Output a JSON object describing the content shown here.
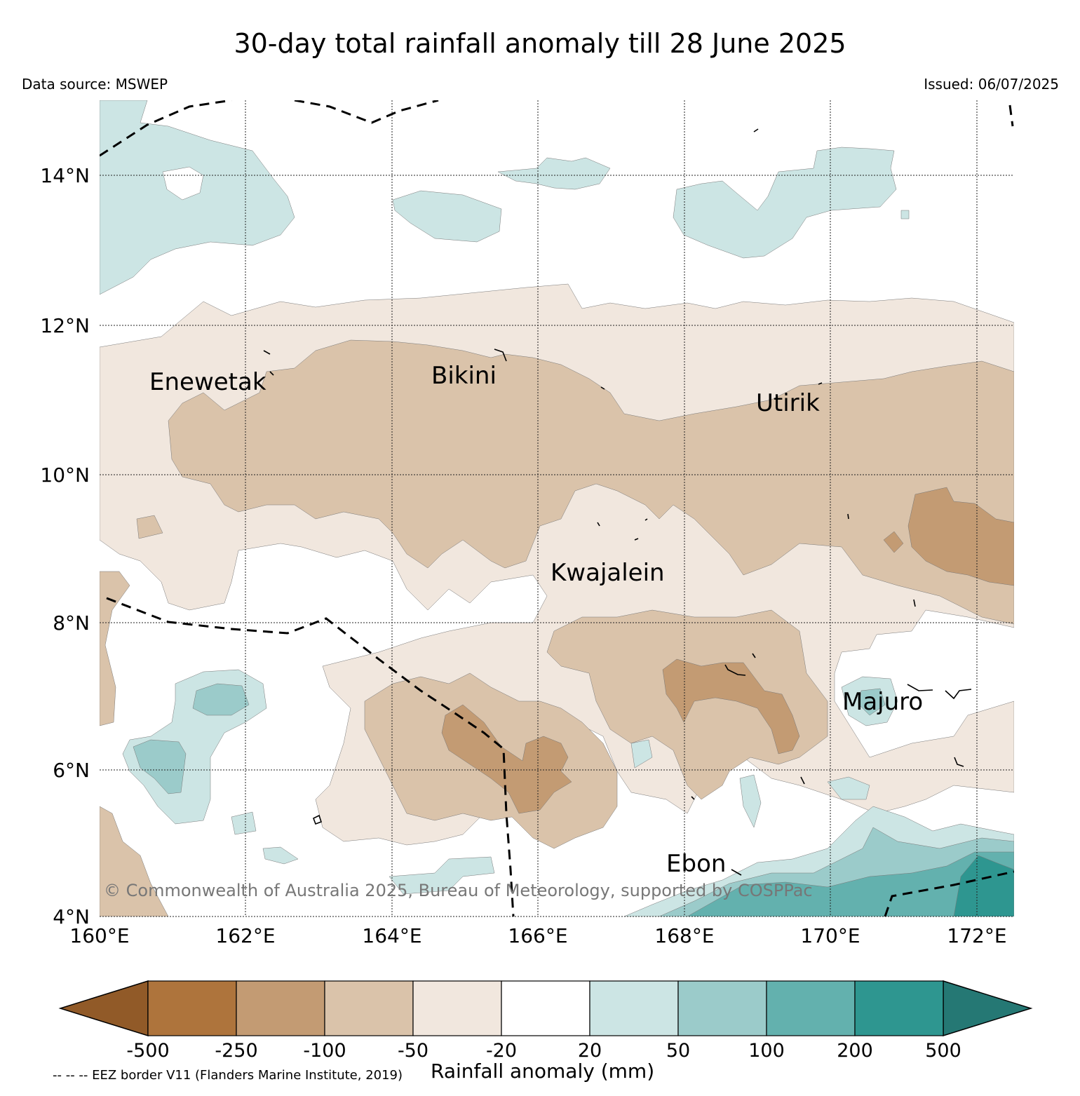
{
  "title": "30-day total rainfall anomaly till 28 June 2025",
  "data_source": "Data source: MSWEP",
  "issued": "Issued: 06/07/2025",
  "copyright": "© Commonwealth of Australia 2025, Bureau of Meteorology, supported by COSPPac",
  "eez_note": "-- -- -- EEZ border V11 (Flanders Marine Institute, 2019)",
  "colorbar": {
    "title": "Rainfall anomaly (mm)",
    "bounds": [
      "-500",
      "-250",
      "-100",
      "-50",
      "-20",
      "20",
      "50",
      "100",
      "200",
      "500"
    ],
    "colors": [
      "#ae743c",
      "#c39b73",
      "#dac3aa",
      "#f1e7de",
      "#ffffff",
      "#cce5e4",
      "#9bcbca",
      "#63b1ae",
      "#2e9690"
    ],
    "extend_low_color": "#915a28",
    "extend_high_color": "#257874"
  },
  "map": {
    "lat_labels": [
      "14°N",
      "12°N",
      "10°N",
      "8°N",
      "6°N",
      "4°N"
    ],
    "lon_labels": [
      "160°E",
      "162°E",
      "164°E",
      "166°E",
      "168°E",
      "170°E",
      "172°E"
    ],
    "lon_range": [
      160,
      172.5
    ],
    "lat_range": [
      4,
      15
    ],
    "places": [
      {
        "name": "Enewetak",
        "lon": 162.2,
        "lat": 11.5
      },
      {
        "name": "Bikini",
        "lon": 165.5,
        "lat": 11.6
      },
      {
        "name": "Utirik",
        "lon": 169.8,
        "lat": 11.2
      },
      {
        "name": "Kwajalein",
        "lon": 167.7,
        "lat": 8.7
      },
      {
        "name": "Majuro",
        "lon": 171.2,
        "lat": 7.1
      },
      {
        "name": "Ebon",
        "lon": 168.6,
        "lat": 4.6
      }
    ]
  }
}
